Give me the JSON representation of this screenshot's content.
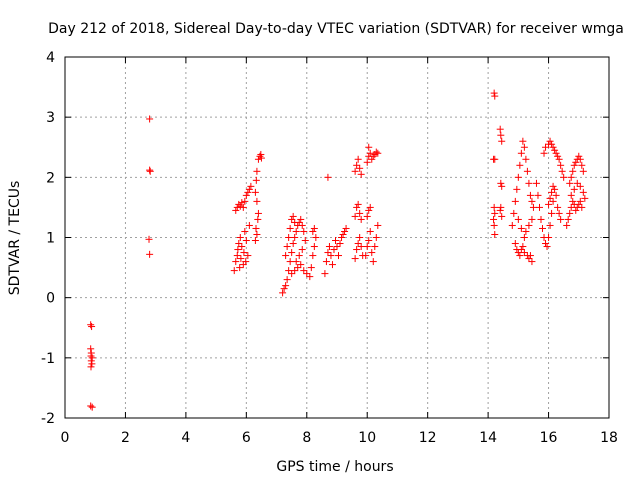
{
  "chart_data": {
    "type": "scatter",
    "title": "Day 212 of 2018, Sidereal Day-to-day VTEC variation (SDTVAR) for receiver wmga",
    "xlabel": "GPS time / hours",
    "ylabel": "SDTVAR / TECUs",
    "xlim": [
      0,
      18
    ],
    "ylim": [
      -2,
      4
    ],
    "xticks": [
      0,
      2,
      4,
      6,
      8,
      10,
      12,
      14,
      16,
      18
    ],
    "yticks": [
      -2,
      -1,
      0,
      1,
      2,
      3,
      4
    ],
    "grid": true,
    "marker": "+",
    "color": "#ff0000",
    "series": [
      {
        "name": "SDTVAR",
        "points": [
          [
            0.85,
            -0.45
          ],
          [
            0.88,
            -0.48
          ],
          [
            0.85,
            -0.85
          ],
          [
            0.87,
            -0.92
          ],
          [
            0.86,
            -0.97
          ],
          [
            0.9,
            -1.0
          ],
          [
            0.87,
            -1.05
          ],
          [
            0.89,
            -1.1
          ],
          [
            0.86,
            -1.15
          ],
          [
            0.85,
            -1.8
          ],
          [
            0.9,
            -1.82
          ],
          [
            2.8,
            2.97
          ],
          [
            2.8,
            2.12
          ],
          [
            2.82,
            2.1
          ],
          [
            2.78,
            0.97
          ],
          [
            2.8,
            0.72
          ],
          [
            5.6,
            0.45
          ],
          [
            5.65,
            0.6
          ],
          [
            5.7,
            0.7
          ],
          [
            5.72,
            0.8
          ],
          [
            5.75,
            0.9
          ],
          [
            5.78,
            0.5
          ],
          [
            5.8,
            1.0
          ],
          [
            5.82,
            0.65
          ],
          [
            5.85,
            0.85
          ],
          [
            5.9,
            0.55
          ],
          [
            5.92,
            0.75
          ],
          [
            5.95,
            1.1
          ],
          [
            5.98,
            0.6
          ],
          [
            6.0,
            0.95
          ],
          [
            6.05,
            0.7
          ],
          [
            6.1,
            1.2
          ],
          [
            5.65,
            1.45
          ],
          [
            5.7,
            1.5
          ],
          [
            5.75,
            1.55
          ],
          [
            5.8,
            1.52
          ],
          [
            5.85,
            1.58
          ],
          [
            5.9,
            1.5
          ],
          [
            5.95,
            1.6
          ],
          [
            6.0,
            1.7
          ],
          [
            6.05,
            1.75
          ],
          [
            6.1,
            1.8
          ],
          [
            6.15,
            1.85
          ],
          [
            6.3,
            0.95
          ],
          [
            6.35,
            1.05
          ],
          [
            6.32,
            1.15
          ],
          [
            6.38,
            1.3
          ],
          [
            6.4,
            1.4
          ],
          [
            6.35,
            1.6
          ],
          [
            6.3,
            1.75
          ],
          [
            6.33,
            1.95
          ],
          [
            6.35,
            2.1
          ],
          [
            6.4,
            2.3
          ],
          [
            6.45,
            2.35
          ],
          [
            6.48,
            2.38
          ],
          [
            6.5,
            2.32
          ],
          [
            7.2,
            0.08
          ],
          [
            7.25,
            0.15
          ],
          [
            7.3,
            0.2
          ],
          [
            7.35,
            0.3
          ],
          [
            7.4,
            0.45
          ],
          [
            7.45,
            0.6
          ],
          [
            7.5,
            0.75
          ],
          [
            7.55,
            0.9
          ],
          [
            7.6,
            1.0
          ],
          [
            7.65,
            1.1
          ],
          [
            7.7,
            1.2
          ],
          [
            7.75,
            1.25
          ],
          [
            7.8,
            1.3
          ],
          [
            7.85,
            1.2
          ],
          [
            7.9,
            1.1
          ],
          [
            7.95,
            0.95
          ],
          [
            7.3,
            0.7
          ],
          [
            7.35,
            0.85
          ],
          [
            7.4,
            1.0
          ],
          [
            7.45,
            1.15
          ],
          [
            7.5,
            1.3
          ],
          [
            7.55,
            1.35
          ],
          [
            7.6,
            1.25
          ],
          [
            7.5,
            0.4
          ],
          [
            7.6,
            0.45
          ],
          [
            7.7,
            0.5
          ],
          [
            7.8,
            0.55
          ],
          [
            7.9,
            0.45
          ],
          [
            8.0,
            0.4
          ],
          [
            7.65,
            0.6
          ],
          [
            7.75,
            0.7
          ],
          [
            7.85,
            0.8
          ],
          [
            8.1,
            0.35
          ],
          [
            8.15,
            0.5
          ],
          [
            8.2,
            0.7
          ],
          [
            8.25,
            0.85
          ],
          [
            8.3,
            1.0
          ],
          [
            8.2,
            1.1
          ],
          [
            8.25,
            1.15
          ],
          [
            8.7,
            2.0
          ],
          [
            8.6,
            0.4
          ],
          [
            8.65,
            0.6
          ],
          [
            8.7,
            0.75
          ],
          [
            8.75,
            0.85
          ],
          [
            8.8,
            0.7
          ],
          [
            8.85,
            0.55
          ],
          [
            8.9,
            0.8
          ],
          [
            8.95,
            0.95
          ],
          [
            9.0,
            0.85
          ],
          [
            9.05,
            0.7
          ],
          [
            9.1,
            0.9
          ],
          [
            9.15,
            1.0
          ],
          [
            9.2,
            1.05
          ],
          [
            9.25,
            1.1
          ],
          [
            9.3,
            1.15
          ],
          [
            9.6,
            0.65
          ],
          [
            9.65,
            0.8
          ],
          [
            9.7,
            0.9
          ],
          [
            9.75,
            1.0
          ],
          [
            9.8,
            0.85
          ],
          [
            9.85,
            0.7
          ],
          [
            9.6,
            1.35
          ],
          [
            9.65,
            1.5
          ],
          [
            9.7,
            1.55
          ],
          [
            9.75,
            1.4
          ],
          [
            9.8,
            1.3
          ],
          [
            9.6,
            2.1
          ],
          [
            9.65,
            2.2
          ],
          [
            9.7,
            2.3
          ],
          [
            9.75,
            2.15
          ],
          [
            9.8,
            2.05
          ],
          [
            9.95,
            0.7
          ],
          [
            10.0,
            0.85
          ],
          [
            10.05,
            0.95
          ],
          [
            10.1,
            1.1
          ],
          [
            10.15,
            0.75
          ],
          [
            10.2,
            0.6
          ],
          [
            10.25,
            0.85
          ],
          [
            10.3,
            1.0
          ],
          [
            10.35,
            1.2
          ],
          [
            10.0,
            1.35
          ],
          [
            10.05,
            1.45
          ],
          [
            10.1,
            1.5
          ],
          [
            10.0,
            2.25
          ],
          [
            10.05,
            2.35
          ],
          [
            10.1,
            2.4
          ],
          [
            10.15,
            2.3
          ],
          [
            10.2,
            2.35
          ],
          [
            10.25,
            2.38
          ],
          [
            10.3,
            2.42
          ],
          [
            10.35,
            2.4
          ],
          [
            10.05,
            2.5
          ],
          [
            14.2,
            3.4
          ],
          [
            14.22,
            3.35
          ],
          [
            14.18,
            2.3
          ],
          [
            14.22,
            2.3
          ],
          [
            14.2,
            1.5
          ],
          [
            14.22,
            1.4
          ],
          [
            14.18,
            1.3
          ],
          [
            14.2,
            1.2
          ],
          [
            14.22,
            1.05
          ],
          [
            14.4,
            2.8
          ],
          [
            14.42,
            2.7
          ],
          [
            14.45,
            2.6
          ],
          [
            14.42,
            1.9
          ],
          [
            14.45,
            1.85
          ],
          [
            14.4,
            1.45
          ],
          [
            14.45,
            1.35
          ],
          [
            14.42,
            1.5
          ],
          [
            14.8,
            1.2
          ],
          [
            14.85,
            1.4
          ],
          [
            14.9,
            1.6
          ],
          [
            14.95,
            1.8
          ],
          [
            15.0,
            2.0
          ],
          [
            15.05,
            2.2
          ],
          [
            15.1,
            2.4
          ],
          [
            15.15,
            2.6
          ],
          [
            15.2,
            2.5
          ],
          [
            15.25,
            2.3
          ],
          [
            15.3,
            2.1
          ],
          [
            15.35,
            1.9
          ],
          [
            15.4,
            1.7
          ],
          [
            15.45,
            1.6
          ],
          [
            15.5,
            1.5
          ],
          [
            14.9,
            0.9
          ],
          [
            14.95,
            0.8
          ],
          [
            15.0,
            0.75
          ],
          [
            15.05,
            0.7
          ],
          [
            15.1,
            0.8
          ],
          [
            15.15,
            0.85
          ],
          [
            15.2,
            0.75
          ],
          [
            15.3,
            0.7
          ],
          [
            15.35,
            0.65
          ],
          [
            15.4,
            0.7
          ],
          [
            15.45,
            0.6
          ],
          [
            15.0,
            1.3
          ],
          [
            15.1,
            1.15
          ],
          [
            15.2,
            1.0
          ],
          [
            15.25,
            1.1
          ],
          [
            15.35,
            1.2
          ],
          [
            15.45,
            1.3
          ],
          [
            15.6,
            1.9
          ],
          [
            15.65,
            1.7
          ],
          [
            15.7,
            1.5
          ],
          [
            15.75,
            1.3
          ],
          [
            15.8,
            1.15
          ],
          [
            15.85,
            1.0
          ],
          [
            15.9,
            0.9
          ],
          [
            15.95,
            0.85
          ],
          [
            16.0,
            1.0
          ],
          [
            16.05,
            1.2
          ],
          [
            16.1,
            1.4
          ],
          [
            16.15,
            1.6
          ],
          [
            16.2,
            1.8
          ],
          [
            16.25,
            1.7
          ],
          [
            15.85,
            2.4
          ],
          [
            15.9,
            2.5
          ],
          [
            16.0,
            2.55
          ],
          [
            16.05,
            2.6
          ],
          [
            16.1,
            2.55
          ],
          [
            16.15,
            2.5
          ],
          [
            16.2,
            2.45
          ],
          [
            16.25,
            2.4
          ],
          [
            16.3,
            2.35
          ],
          [
            16.35,
            2.3
          ],
          [
            16.4,
            2.2
          ],
          [
            16.45,
            2.1
          ],
          [
            16.5,
            2.0
          ],
          [
            16.0,
            1.55
          ],
          [
            16.05,
            1.65
          ],
          [
            16.1,
            1.75
          ],
          [
            16.15,
            1.85
          ],
          [
            16.3,
            1.5
          ],
          [
            16.35,
            1.4
          ],
          [
            16.4,
            1.3
          ],
          [
            16.6,
            1.2
          ],
          [
            16.65,
            1.3
          ],
          [
            16.7,
            1.4
          ],
          [
            16.75,
            1.5
          ],
          [
            16.8,
            1.6
          ],
          [
            16.85,
            1.55
          ],
          [
            16.9,
            1.45
          ],
          [
            16.95,
            1.5
          ],
          [
            17.0,
            1.55
          ],
          [
            17.05,
            1.6
          ],
          [
            17.1,
            1.5
          ],
          [
            16.7,
            1.9
          ],
          [
            16.75,
            2.0
          ],
          [
            16.8,
            2.1
          ],
          [
            16.85,
            2.2
          ],
          [
            16.9,
            2.25
          ],
          [
            16.95,
            2.3
          ],
          [
            17.0,
            2.35
          ],
          [
            17.05,
            2.3
          ],
          [
            17.1,
            2.2
          ],
          [
            17.15,
            2.1
          ],
          [
            16.75,
            1.7
          ],
          [
            16.85,
            1.8
          ],
          [
            16.95,
            1.9
          ],
          [
            17.05,
            1.85
          ],
          [
            17.15,
            1.75
          ],
          [
            17.2,
            1.65
          ]
        ]
      }
    ]
  }
}
